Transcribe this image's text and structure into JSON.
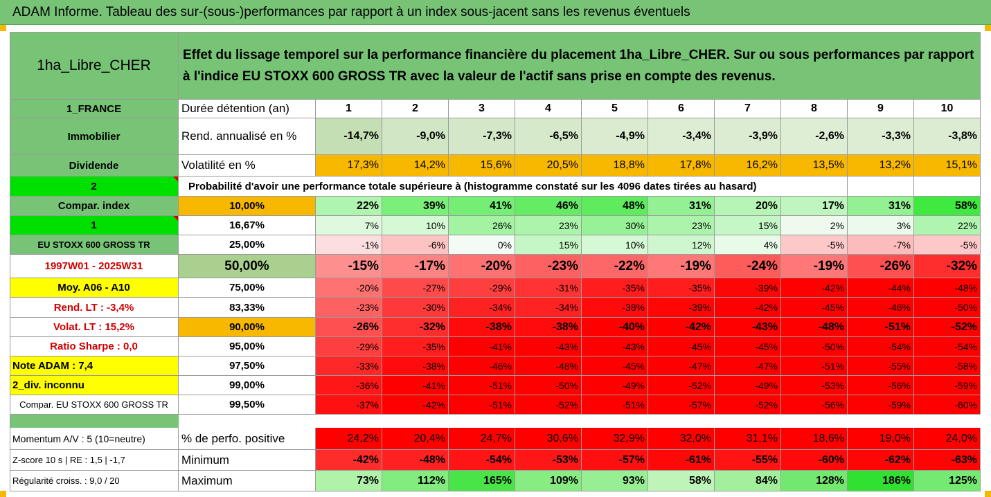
{
  "title": "ADAM Informe. Tableau des sur-(sous-)performances par rapport à un index sous-jacent sans les revenus éventuels",
  "placement": "1ha_Libre_CHER",
  "description": "Effet du lissage temporel sur la performance financière du placement 1ha_Libre_CHER. Sur ou sous performances par rapport à l'indice EU STOXX 600 GROSS TR avec la valeur de l'actif sans prise en compte des revenus.",
  "colors": {
    "header_green": "#77c477",
    "bright_green": "#00e000",
    "orange": "#f8b800",
    "yellow": "#ffff00",
    "red_label": "#d00000"
  },
  "left_labels": {
    "country": "1_FRANCE",
    "category": "Immobilier",
    "income": "Dividende",
    "num2": "2",
    "compar_index": "Compar. index",
    "num1": "1",
    "index_name": "EU STOXX 600 GROSS TR",
    "period": "1997W01 - 2025W31",
    "moy": "Moy. A06 - A10",
    "rend_lt": "Rend. LT :   -3,4%",
    "volat_lt": "Volat. LT :   15,2%",
    "sharpe": "Ratio Sharpe :   0,0",
    "note": "Note ADAM : 7,4",
    "div": "2_div. inconnu",
    "compar_name": "Compar. EU STOXX 600 GROSS TR",
    "momentum": "Momentum A/V : 5 (10=neutre)",
    "zscore": "Z-score 10 s  | RE : 1,5  | -1,7",
    "regularite": "Régularité croiss. : 9,0 / 20"
  },
  "row_labels": {
    "duree": "Durée détention (an)",
    "rend": "Rend. annualisé en %",
    "vol": "Volatilité en %",
    "prob": "Probabilité d'avoir une performance totale supérieure à (histogramme constaté sur les 4096 dates tirées au hasard)",
    "pos": "% de perfo. positive",
    "min": "Minimum",
    "max": "Maximum"
  },
  "years": [
    "1",
    "2",
    "3",
    "4",
    "5",
    "6",
    "7",
    "8",
    "9",
    "10"
  ],
  "rend_values": [
    "-14,7%",
    "-9,0%",
    "-7,3%",
    "-6,5%",
    "-4,9%",
    "-3,4%",
    "-3,9%",
    "-2,6%",
    "-3,3%",
    "-3,8%"
  ],
  "vol_values": [
    "17,3%",
    "14,2%",
    "15,6%",
    "20,5%",
    "18,8%",
    "17,8%",
    "16,2%",
    "13,5%",
    "13,2%",
    "15,1%"
  ],
  "percentile_rows": [
    {
      "p": "10,00%",
      "values": [
        "22%",
        "39%",
        "41%",
        "46%",
        "48%",
        "31%",
        "20%",
        "17%",
        "31%",
        "58%"
      ]
    },
    {
      "p": "16,67%",
      "values": [
        "7%",
        "10%",
        "26%",
        "23%",
        "30%",
        "23%",
        "15%",
        "2%",
        "3%",
        "22%"
      ]
    },
    {
      "p": "25,00%",
      "values": [
        "-1%",
        "-6%",
        "0%",
        "15%",
        "10%",
        "12%",
        "4%",
        "-5%",
        "-7%",
        "-5%"
      ]
    },
    {
      "p": "50,00%",
      "values": [
        "-15%",
        "-17%",
        "-20%",
        "-23%",
        "-22%",
        "-19%",
        "-24%",
        "-19%",
        "-26%",
        "-32%"
      ]
    },
    {
      "p": "75,00%",
      "values": [
        "-20%",
        "-27%",
        "-29%",
        "-31%",
        "-35%",
        "-35%",
        "-39%",
        "-42%",
        "-44%",
        "-48%"
      ]
    },
    {
      "p": "83,33%",
      "values": [
        "-23%",
        "-30%",
        "-34%",
        "-34%",
        "-38%",
        "-39%",
        "-42%",
        "-45%",
        "-46%",
        "-50%"
      ]
    },
    {
      "p": "90,00%",
      "values": [
        "-26%",
        "-32%",
        "-38%",
        "-38%",
        "-40%",
        "-42%",
        "-43%",
        "-48%",
        "-51%",
        "-52%"
      ]
    },
    {
      "p": "95,00%",
      "values": [
        "-29%",
        "-35%",
        "-41%",
        "-43%",
        "-43%",
        "-45%",
        "-45%",
        "-50%",
        "-54%",
        "-54%"
      ]
    },
    {
      "p": "97,50%",
      "values": [
        "-33%",
        "-38%",
        "-46%",
        "-48%",
        "-45%",
        "-47%",
        "-47%",
        "-51%",
        "-55%",
        "-58%"
      ]
    },
    {
      "p": "99,00%",
      "values": [
        "-36%",
        "-41%",
        "-51%",
        "-50%",
        "-49%",
        "-52%",
        "-49%",
        "-53%",
        "-56%",
        "-59%"
      ]
    },
    {
      "p": "99,50%",
      "values": [
        "-37%",
        "-42%",
        "-51%",
        "-52%",
        "-51%",
        "-57%",
        "-52%",
        "-56%",
        "-59%",
        "-60%"
      ]
    }
  ],
  "pos_values": [
    "24,2%",
    "20,4%",
    "24,7%",
    "30,6%",
    "32,9%",
    "32,0%",
    "31,1%",
    "18,6%",
    "19,0%",
    "24,0%"
  ],
  "min_values": [
    "-42%",
    "-48%",
    "-54%",
    "-53%",
    "-57%",
    "-61%",
    "-55%",
    "-60%",
    "-62%",
    "-63%"
  ],
  "max_values": [
    "73%",
    "112%",
    "165%",
    "109%",
    "93%",
    "58%",
    "84%",
    "128%",
    "186%",
    "125%"
  ]
}
